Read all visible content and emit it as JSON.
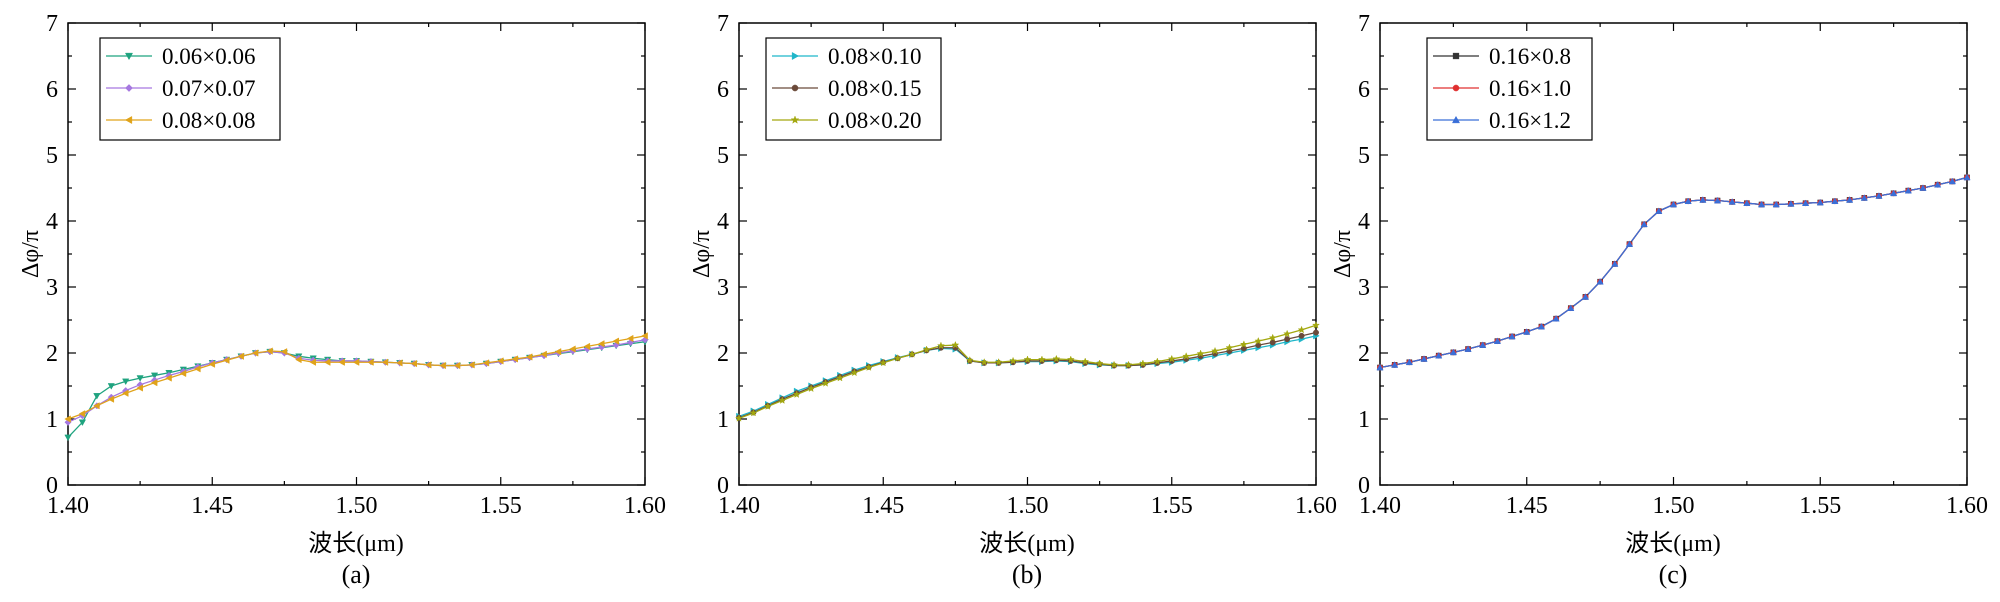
{
  "chart_data": [
    {
      "type": "line",
      "panel_label": "(a)",
      "xlabel": "波长(μm)",
      "ylabel": "Δφ/π",
      "xlim": [
        1.4,
        1.6
      ],
      "ylim": [
        0,
        7
      ],
      "xticks": [
        "1.40",
        "1.45",
        "1.50",
        "1.55",
        "1.60"
      ],
      "yticks": [
        "0",
        "1",
        "2",
        "3",
        "4",
        "5",
        "6",
        "7"
      ],
      "legend_position": "top-left",
      "series": [
        {
          "name": "0.06×0.06",
          "color": "#1fa37f",
          "marker": "triangle-down",
          "x": [
            1.4,
            1.405,
            1.41,
            1.415,
            1.42,
            1.425,
            1.43,
            1.435,
            1.44,
            1.445,
            1.45,
            1.455,
            1.46,
            1.465,
            1.47,
            1.475,
            1.48,
            1.485,
            1.49,
            1.495,
            1.5,
            1.505,
            1.51,
            1.515,
            1.52,
            1.525,
            1.53,
            1.535,
            1.54,
            1.545,
            1.55,
            1.555,
            1.56,
            1.565,
            1.57,
            1.575,
            1.58,
            1.585,
            1.59,
            1.595,
            1.6
          ],
          "y": [
            0.72,
            0.95,
            1.35,
            1.5,
            1.57,
            1.62,
            1.66,
            1.7,
            1.75,
            1.8,
            1.85,
            1.9,
            1.95,
            2.0,
            2.02,
            2.0,
            1.95,
            1.92,
            1.9,
            1.88,
            1.88,
            1.87,
            1.86,
            1.85,
            1.84,
            1.82,
            1.81,
            1.81,
            1.82,
            1.84,
            1.87,
            1.9,
            1.93,
            1.96,
            1.99,
            2.02,
            2.05,
            2.08,
            2.11,
            2.14,
            2.17
          ]
        },
        {
          "name": "0.07×0.07",
          "color": "#a678e0",
          "marker": "diamond",
          "x": [
            1.4,
            1.405,
            1.41,
            1.415,
            1.42,
            1.425,
            1.43,
            1.435,
            1.44,
            1.445,
            1.45,
            1.455,
            1.46,
            1.465,
            1.47,
            1.475,
            1.48,
            1.485,
            1.49,
            1.495,
            1.5,
            1.505,
            1.51,
            1.515,
            1.52,
            1.525,
            1.53,
            1.535,
            1.54,
            1.545,
            1.55,
            1.555,
            1.56,
            1.565,
            1.57,
            1.575,
            1.58,
            1.585,
            1.59,
            1.595,
            1.6
          ],
          "y": [
            0.95,
            1.05,
            1.2,
            1.33,
            1.43,
            1.52,
            1.59,
            1.66,
            1.72,
            1.79,
            1.85,
            1.9,
            1.95,
            2.0,
            2.02,
            2.0,
            1.92,
            1.89,
            1.88,
            1.88,
            1.88,
            1.87,
            1.86,
            1.85,
            1.84,
            1.82,
            1.81,
            1.81,
            1.82,
            1.84,
            1.87,
            1.9,
            1.93,
            1.96,
            2.0,
            2.03,
            2.06,
            2.09,
            2.12,
            2.16,
            2.2
          ]
        },
        {
          "name": "0.08×0.08",
          "color": "#e0a31a",
          "marker": "triangle-left",
          "x": [
            1.4,
            1.405,
            1.41,
            1.415,
            1.42,
            1.425,
            1.43,
            1.435,
            1.44,
            1.445,
            1.45,
            1.455,
            1.46,
            1.465,
            1.47,
            1.475,
            1.48,
            1.485,
            1.49,
            1.495,
            1.5,
            1.505,
            1.51,
            1.515,
            1.52,
            1.525,
            1.53,
            1.535,
            1.54,
            1.545,
            1.55,
            1.555,
            1.56,
            1.565,
            1.57,
            1.575,
            1.58,
            1.585,
            1.59,
            1.595,
            1.6
          ],
          "y": [
            1.0,
            1.08,
            1.2,
            1.3,
            1.39,
            1.47,
            1.55,
            1.62,
            1.69,
            1.76,
            1.83,
            1.89,
            1.95,
            2.0,
            2.03,
            2.02,
            1.9,
            1.86,
            1.86,
            1.86,
            1.86,
            1.86,
            1.86,
            1.85,
            1.84,
            1.82,
            1.81,
            1.81,
            1.82,
            1.85,
            1.88,
            1.91,
            1.94,
            1.98,
            2.02,
            2.06,
            2.1,
            2.14,
            2.18,
            2.22,
            2.26
          ]
        }
      ]
    },
    {
      "type": "line",
      "panel_label": "(b)",
      "xlabel": "波长(μm)",
      "ylabel": "Δφ/π",
      "xlim": [
        1.4,
        1.6
      ],
      "ylim": [
        0,
        7
      ],
      "xticks": [
        "1.40",
        "1.45",
        "1.50",
        "1.55",
        "1.60"
      ],
      "yticks": [
        "0",
        "1",
        "2",
        "3",
        "4",
        "5",
        "6",
        "7"
      ],
      "legend_position": "top-left",
      "series": [
        {
          "name": "0.08×0.10",
          "color": "#1fb6c9",
          "marker": "triangle-right",
          "x": [
            1.4,
            1.405,
            1.41,
            1.415,
            1.42,
            1.425,
            1.43,
            1.435,
            1.44,
            1.445,
            1.45,
            1.455,
            1.46,
            1.465,
            1.47,
            1.475,
            1.48,
            1.485,
            1.49,
            1.495,
            1.5,
            1.505,
            1.51,
            1.515,
            1.52,
            1.525,
            1.53,
            1.535,
            1.54,
            1.545,
            1.55,
            1.555,
            1.56,
            1.565,
            1.57,
            1.575,
            1.58,
            1.585,
            1.59,
            1.595,
            1.6
          ],
          "y": [
            1.04,
            1.12,
            1.22,
            1.32,
            1.42,
            1.5,
            1.58,
            1.66,
            1.74,
            1.81,
            1.87,
            1.93,
            1.98,
            2.04,
            2.07,
            2.06,
            1.88,
            1.85,
            1.85,
            1.86,
            1.87,
            1.87,
            1.88,
            1.87,
            1.84,
            1.82,
            1.81,
            1.81,
            1.82,
            1.84,
            1.86,
            1.89,
            1.92,
            1.96,
            2.0,
            2.04,
            2.08,
            2.12,
            2.17,
            2.21,
            2.26
          ]
        },
        {
          "name": "0.08×0.15",
          "color": "#6b4a3a",
          "marker": "circle",
          "x": [
            1.4,
            1.405,
            1.41,
            1.415,
            1.42,
            1.425,
            1.43,
            1.435,
            1.44,
            1.445,
            1.45,
            1.455,
            1.46,
            1.465,
            1.47,
            1.475,
            1.48,
            1.485,
            1.49,
            1.495,
            1.5,
            1.505,
            1.51,
            1.515,
            1.52,
            1.525,
            1.53,
            1.535,
            1.54,
            1.545,
            1.55,
            1.555,
            1.56,
            1.565,
            1.57,
            1.575,
            1.58,
            1.585,
            1.59,
            1.595,
            1.6
          ],
          "y": [
            1.02,
            1.1,
            1.2,
            1.3,
            1.39,
            1.48,
            1.56,
            1.64,
            1.72,
            1.79,
            1.86,
            1.92,
            1.98,
            2.04,
            2.08,
            2.08,
            1.88,
            1.85,
            1.85,
            1.86,
            1.88,
            1.88,
            1.89,
            1.88,
            1.85,
            1.83,
            1.81,
            1.81,
            1.82,
            1.85,
            1.88,
            1.91,
            1.95,
            1.99,
            2.03,
            2.07,
            2.12,
            2.16,
            2.21,
            2.26,
            2.31
          ]
        },
        {
          "name": "0.08×0.20",
          "color": "#a3a80f",
          "marker": "star",
          "x": [
            1.4,
            1.405,
            1.41,
            1.415,
            1.42,
            1.425,
            1.43,
            1.435,
            1.44,
            1.445,
            1.45,
            1.455,
            1.46,
            1.465,
            1.47,
            1.475,
            1.48,
            1.485,
            1.49,
            1.495,
            1.5,
            1.505,
            1.51,
            1.515,
            1.52,
            1.525,
            1.53,
            1.535,
            1.54,
            1.545,
            1.55,
            1.555,
            1.56,
            1.565,
            1.57,
            1.575,
            1.58,
            1.585,
            1.59,
            1.595,
            1.6
          ],
          "y": [
            1.01,
            1.09,
            1.19,
            1.28,
            1.37,
            1.46,
            1.54,
            1.62,
            1.7,
            1.78,
            1.85,
            1.92,
            1.98,
            2.05,
            2.11,
            2.12,
            1.89,
            1.86,
            1.86,
            1.88,
            1.9,
            1.9,
            1.91,
            1.9,
            1.87,
            1.84,
            1.82,
            1.82,
            1.84,
            1.87,
            1.91,
            1.95,
            1.99,
            2.03,
            2.08,
            2.13,
            2.18,
            2.23,
            2.29,
            2.35,
            2.42
          ]
        }
      ]
    },
    {
      "type": "line",
      "panel_label": "(c)",
      "xlabel": "波长(μm)",
      "ylabel": "Δφ/π",
      "xlim": [
        1.4,
        1.6
      ],
      "ylim": [
        0,
        7
      ],
      "xticks": [
        "1.40",
        "1.45",
        "1.50",
        "1.55",
        "1.60"
      ],
      "yticks": [
        "0",
        "1",
        "2",
        "3",
        "4",
        "5",
        "6",
        "7"
      ],
      "legend_position": "top-left",
      "series": [
        {
          "name": "0.16×0.8",
          "color": "#333333",
          "marker": "square",
          "x": [
            1.4,
            1.405,
            1.41,
            1.415,
            1.42,
            1.425,
            1.43,
            1.435,
            1.44,
            1.445,
            1.45,
            1.455,
            1.46,
            1.465,
            1.47,
            1.475,
            1.48,
            1.485,
            1.49,
            1.495,
            1.5,
            1.505,
            1.51,
            1.515,
            1.52,
            1.525,
            1.53,
            1.535,
            1.54,
            1.545,
            1.55,
            1.555,
            1.56,
            1.565,
            1.57,
            1.575,
            1.58,
            1.585,
            1.59,
            1.595,
            1.6
          ],
          "y": [
            1.78,
            1.82,
            1.86,
            1.91,
            1.96,
            2.01,
            2.06,
            2.12,
            2.18,
            2.25,
            2.32,
            2.4,
            2.52,
            2.68,
            2.85,
            3.08,
            3.35,
            3.65,
            3.95,
            4.15,
            4.25,
            4.3,
            4.32,
            4.31,
            4.29,
            4.27,
            4.25,
            4.25,
            4.26,
            4.27,
            4.28,
            4.3,
            4.32,
            4.35,
            4.38,
            4.42,
            4.46,
            4.5,
            4.55,
            4.6,
            4.66
          ]
        },
        {
          "name": "0.16×1.0",
          "color": "#e03030",
          "marker": "circle",
          "x": [
            1.4,
            1.405,
            1.41,
            1.415,
            1.42,
            1.425,
            1.43,
            1.435,
            1.44,
            1.445,
            1.45,
            1.455,
            1.46,
            1.465,
            1.47,
            1.475,
            1.48,
            1.485,
            1.49,
            1.495,
            1.5,
            1.505,
            1.51,
            1.515,
            1.52,
            1.525,
            1.53,
            1.535,
            1.54,
            1.545,
            1.55,
            1.555,
            1.56,
            1.565,
            1.57,
            1.575,
            1.58,
            1.585,
            1.59,
            1.595,
            1.6
          ],
          "y": [
            1.78,
            1.82,
            1.86,
            1.91,
            1.96,
            2.01,
            2.06,
            2.12,
            2.18,
            2.25,
            2.32,
            2.4,
            2.52,
            2.68,
            2.85,
            3.08,
            3.35,
            3.65,
            3.95,
            4.15,
            4.25,
            4.3,
            4.32,
            4.31,
            4.29,
            4.27,
            4.25,
            4.25,
            4.26,
            4.27,
            4.28,
            4.3,
            4.32,
            4.35,
            4.38,
            4.42,
            4.46,
            4.5,
            4.55,
            4.6,
            4.66
          ]
        },
        {
          "name": "0.16×1.2",
          "color": "#3a6fd8",
          "marker": "triangle-up",
          "x": [
            1.4,
            1.405,
            1.41,
            1.415,
            1.42,
            1.425,
            1.43,
            1.435,
            1.44,
            1.445,
            1.45,
            1.455,
            1.46,
            1.465,
            1.47,
            1.475,
            1.48,
            1.485,
            1.49,
            1.495,
            1.5,
            1.505,
            1.51,
            1.515,
            1.52,
            1.525,
            1.53,
            1.535,
            1.54,
            1.545,
            1.55,
            1.555,
            1.56,
            1.565,
            1.57,
            1.575,
            1.58,
            1.585,
            1.59,
            1.595,
            1.6
          ],
          "y": [
            1.78,
            1.82,
            1.86,
            1.91,
            1.96,
            2.01,
            2.06,
            2.12,
            2.18,
            2.25,
            2.32,
            2.4,
            2.52,
            2.68,
            2.85,
            3.08,
            3.35,
            3.65,
            3.95,
            4.15,
            4.25,
            4.3,
            4.32,
            4.31,
            4.29,
            4.27,
            4.25,
            4.25,
            4.26,
            4.27,
            4.28,
            4.3,
            4.32,
            4.35,
            4.38,
            4.42,
            4.46,
            4.5,
            4.55,
            4.6,
            4.66
          ]
        }
      ]
    }
  ]
}
